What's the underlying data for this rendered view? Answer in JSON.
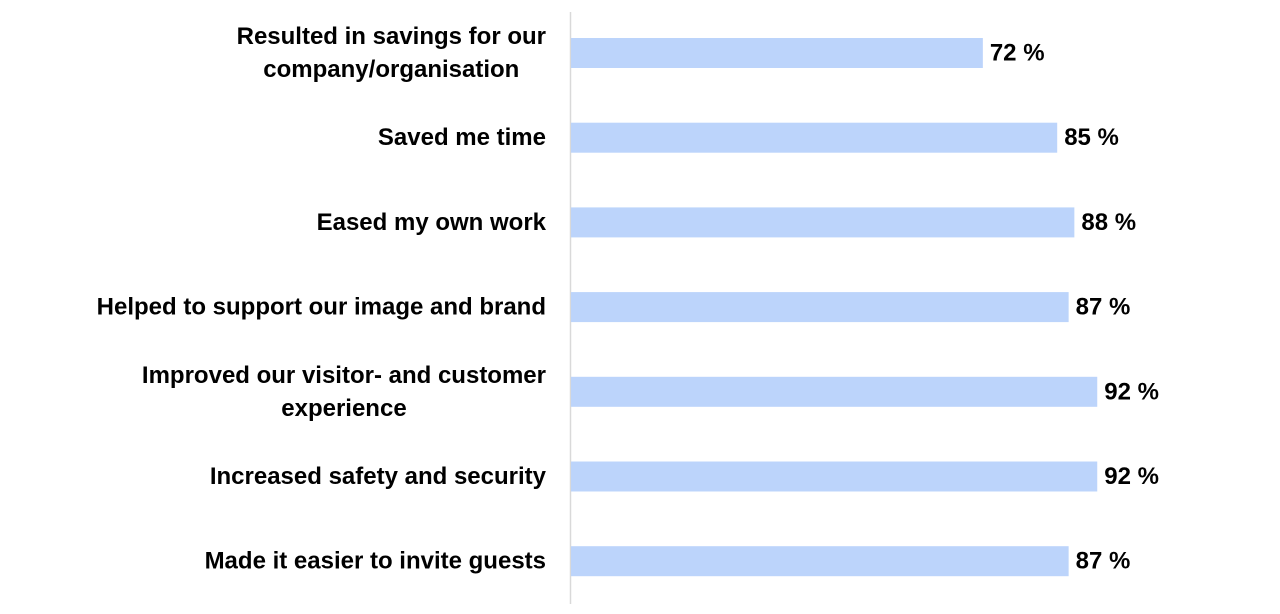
{
  "chart_data": {
    "type": "bar",
    "orientation": "horizontal",
    "categories": [
      [
        "Resulted in savings for our",
        "company/organisation"
      ],
      [
        "Saved me time"
      ],
      [
        "Eased my own work"
      ],
      [
        "Helped to support our image and brand"
      ],
      [
        "Improved our visitor- and customer",
        "experience"
      ],
      [
        "Increased safety and security"
      ],
      [
        "Made it easier to invite guests"
      ]
    ],
    "values": [
      72,
      85,
      88,
      87,
      92,
      92,
      87
    ],
    "value_labels": [
      "72 %",
      "85 %",
      "88 %",
      "87 %",
      "92 %",
      "92 %",
      "87 %"
    ],
    "unit": "%",
    "xlim": [
      0,
      100
    ],
    "grid": false,
    "bar_color": "#bcd4fb",
    "axis_color": "#d9d9d9"
  }
}
